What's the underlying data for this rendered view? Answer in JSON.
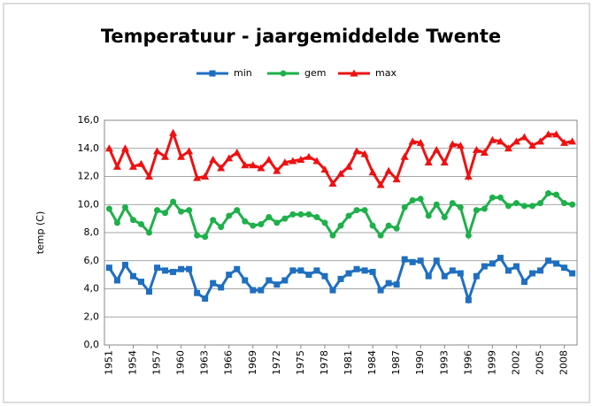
{
  "chart_data": {
    "type": "line",
    "title": "Temperatuur - jaargemiddelde Twente",
    "y_label": "temp (C)",
    "x": [
      1951,
      1952,
      1953,
      1954,
      1955,
      1956,
      1957,
      1958,
      1959,
      1960,
      1961,
      1962,
      1963,
      1964,
      1965,
      1966,
      1967,
      1968,
      1969,
      1970,
      1971,
      1972,
      1973,
      1974,
      1975,
      1976,
      1977,
      1978,
      1979,
      1980,
      1981,
      1982,
      1983,
      1984,
      1985,
      1986,
      1987,
      1988,
      1989,
      1990,
      1991,
      1992,
      1993,
      1994,
      1995,
      1996,
      1997,
      1998,
      1999,
      2000,
      2001,
      2002,
      2003,
      2004,
      2005,
      2006,
      2007,
      2008,
      2009
    ],
    "xlim": [
      1950.4,
      2009.6
    ],
    "xticks": [
      1951,
      1954,
      1957,
      1960,
      1963,
      1966,
      1969,
      1972,
      1975,
      1978,
      1981,
      1984,
      1987,
      1990,
      1993,
      1996,
      1999,
      2002,
      2005,
      2008
    ],
    "ylim": [
      0,
      16
    ],
    "yticks": [
      {
        "value": 0,
        "label": "0,0"
      },
      {
        "value": 2,
        "label": "2,0"
      },
      {
        "value": 4,
        "label": "4,0"
      },
      {
        "value": 6,
        "label": "6,0"
      },
      {
        "value": 8,
        "label": "8,0"
      },
      {
        "value": 10,
        "label": "10,0"
      },
      {
        "value": 12,
        "label": "12,0"
      },
      {
        "value": 14,
        "label": "14,0"
      },
      {
        "value": 16,
        "label": "16,0"
      }
    ],
    "grid": true,
    "legend": "top",
    "series": [
      {
        "name": "min",
        "color": "#1f6fc0",
        "marker": "square",
        "values": [
          5.5,
          4.6,
          5.7,
          4.9,
          4.5,
          3.8,
          5.5,
          5.3,
          5.2,
          5.4,
          5.4,
          3.7,
          3.3,
          4.4,
          4.1,
          5.0,
          5.4,
          4.6,
          3.9,
          3.9,
          4.6,
          4.3,
          4.6,
          5.3,
          5.3,
          5.0,
          5.3,
          4.9,
          3.9,
          4.7,
          5.1,
          5.4,
          5.3,
          5.2,
          3.9,
          4.4,
          4.3,
          6.1,
          5.9,
          6.0,
          4.9,
          6.0,
          4.9,
          5.3,
          5.1,
          3.2,
          4.9,
          5.6,
          5.8,
          6.2,
          5.3,
          5.6,
          4.5,
          5.1,
          5.3,
          6.0,
          5.8,
          5.5,
          5.1
        ]
      },
      {
        "name": "gem",
        "color": "#1eb04a",
        "marker": "circle",
        "values": [
          9.7,
          8.7,
          9.8,
          8.9,
          8.6,
          8.0,
          9.6,
          9.4,
          10.2,
          9.5,
          9.6,
          7.8,
          7.7,
          8.9,
          8.4,
          9.2,
          9.6,
          8.8,
          8.5,
          8.6,
          9.1,
          8.7,
          9.0,
          9.3,
          9.3,
          9.3,
          9.1,
          8.7,
          7.8,
          8.5,
          9.2,
          9.6,
          9.6,
          8.5,
          7.8,
          8.5,
          8.3,
          9.8,
          10.3,
          10.4,
          9.2,
          10.0,
          9.1,
          10.1,
          9.8,
          7.8,
          9.6,
          9.7,
          10.5,
          10.5,
          9.9,
          10.1,
          9.9,
          9.9,
          10.1,
          10.8,
          10.7,
          10.1,
          10.0
        ]
      },
      {
        "name": "max",
        "color": "#ee1111",
        "marker": "triangle",
        "values": [
          14.0,
          12.7,
          14.0,
          12.7,
          12.9,
          12.0,
          13.8,
          13.4,
          15.1,
          13.4,
          13.8,
          11.9,
          12.0,
          13.2,
          12.6,
          13.3,
          13.7,
          12.8,
          12.8,
          12.6,
          13.2,
          12.4,
          13.0,
          13.1,
          13.2,
          13.4,
          13.1,
          12.5,
          11.5,
          12.2,
          12.7,
          13.8,
          13.6,
          12.3,
          11.4,
          12.4,
          11.8,
          13.4,
          14.5,
          14.4,
          13.0,
          13.9,
          13.0,
          14.3,
          14.2,
          12.0,
          13.9,
          13.7,
          14.6,
          14.5,
          14.0,
          14.5,
          14.8,
          14.2,
          14.5,
          15.0,
          15.0,
          14.4,
          14.5
        ]
      }
    ]
  }
}
